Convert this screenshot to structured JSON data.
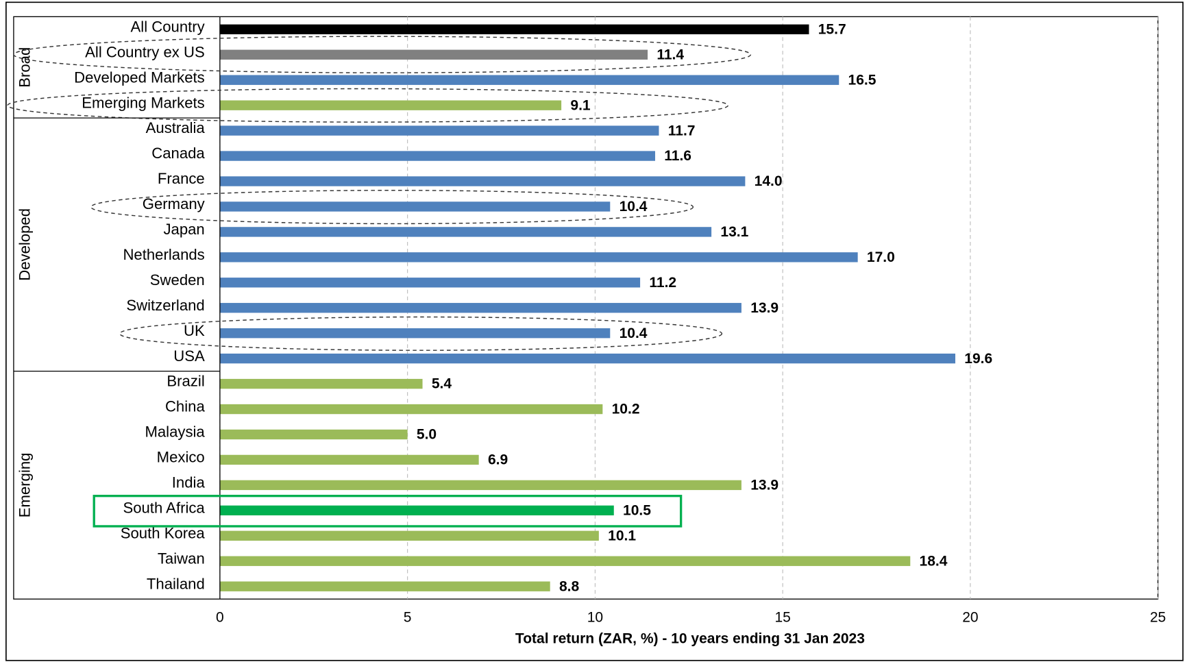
{
  "chart_data": {
    "type": "bar",
    "orientation": "horizontal",
    "xlabel": "Total return (ZAR, %) - 10 years ending 31 Jan 2023",
    "xlim": [
      0,
      25
    ],
    "xticks": [
      0,
      5,
      10,
      15,
      20,
      25
    ],
    "grid": true,
    "groups": [
      {
        "name": "Broad",
        "categories": [
          "All Country",
          "All Country ex US",
          "Developed Markets",
          "Emerging Markets"
        ],
        "values": [
          15.7,
          11.4,
          16.5,
          9.1
        ],
        "value_labels": [
          "15.7",
          "11.4",
          "16.5",
          "9.1"
        ],
        "colors": [
          "#000000",
          "#808080",
          "#4f81bd",
          "#9bbb59"
        ]
      },
      {
        "name": "Developed",
        "categories": [
          "Australia",
          "Canada",
          "France",
          "Germany",
          "Japan",
          "Netherlands",
          "Sweden",
          "Switzerland",
          "UK",
          "USA"
        ],
        "values": [
          11.7,
          11.6,
          14.0,
          10.4,
          13.1,
          17.0,
          11.2,
          13.9,
          10.4,
          19.6
        ],
        "value_labels": [
          "11.7",
          "11.6",
          "14.0",
          "10.4",
          "13.1",
          "17.0",
          "11.2",
          "13.9",
          "10.4",
          "19.6"
        ],
        "colors": [
          "#4f81bd",
          "#4f81bd",
          "#4f81bd",
          "#4f81bd",
          "#4f81bd",
          "#4f81bd",
          "#4f81bd",
          "#4f81bd",
          "#4f81bd",
          "#4f81bd"
        ]
      },
      {
        "name": "Emerging",
        "categories": [
          "Brazil",
          "China",
          "Malaysia",
          "Mexico",
          "India",
          "South Africa",
          "South Korea",
          "Taiwan",
          "Thailand"
        ],
        "values": [
          5.4,
          10.2,
          5.0,
          6.9,
          13.9,
          10.5,
          10.1,
          18.4,
          8.8
        ],
        "value_labels": [
          "5.4",
          "10.2",
          "5.0",
          "6.9",
          "13.9",
          "10.5",
          "10.1",
          "18.4",
          "8.8"
        ],
        "colors": [
          "#9bbb59",
          "#9bbb59",
          "#9bbb59",
          "#9bbb59",
          "#9bbb59",
          "#00b050",
          "#9bbb59",
          "#9bbb59",
          "#9bbb59"
        ]
      }
    ]
  }
}
